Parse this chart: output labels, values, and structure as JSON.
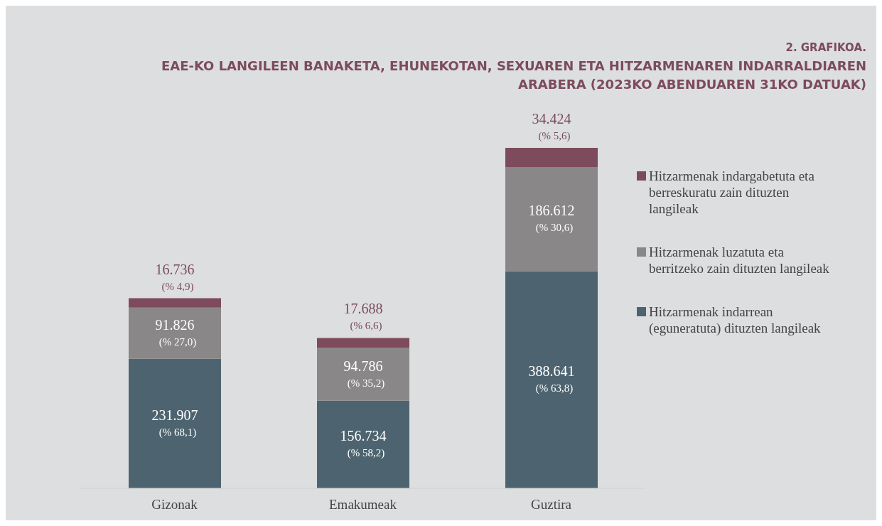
{
  "chart_data": {
    "type": "bar",
    "title": "2. GRAFIKOA.",
    "subtitle": "EAE-KO LANGILEEN BANAKETA, EHUNEKOTAN, SEXUAREN ETA HITZARMENAREN INDARRALDIAREN ARABERA (2023KO ABENDUAREN 31KO DATUAK)",
    "categories": [
      "Gizonak",
      "Emakumeak",
      "Guztira"
    ],
    "stacked": true,
    "legend": "right",
    "grid": false,
    "series": [
      {
        "name": "Hitzarmenak indarrean (eguneratuta) dituzten langileak",
        "color": "#4d6470",
        "values": [
          231907,
          156734,
          388641
        ],
        "value_labels": [
          "231.907\n(% 68,1)",
          "156.734\n(% 58,2)",
          "388.641\n(% 63,8)"
        ]
      },
      {
        "name": "Hitzarmenak luzatuta eta berritzeko zain dituzten langileak",
        "color": "#8a8788",
        "values": [
          91826,
          94786,
          186612
        ],
        "value_labels": [
          "91.826\n(% 27,0)",
          "94.786\n(% 35,2)",
          "186.612\n(% 30,6)"
        ]
      },
      {
        "name": "Hitzarmenak indargabetuta eta berreskuratu zain dituzten langileak",
        "color": "#7d4b5b",
        "values": [
          16736,
          17688,
          34424
        ],
        "value_labels": [
          "16.736\n(% 4,9)",
          "17.688\n(% 6,6)",
          "34.424\n(% 5,6)"
        ]
      }
    ]
  }
}
